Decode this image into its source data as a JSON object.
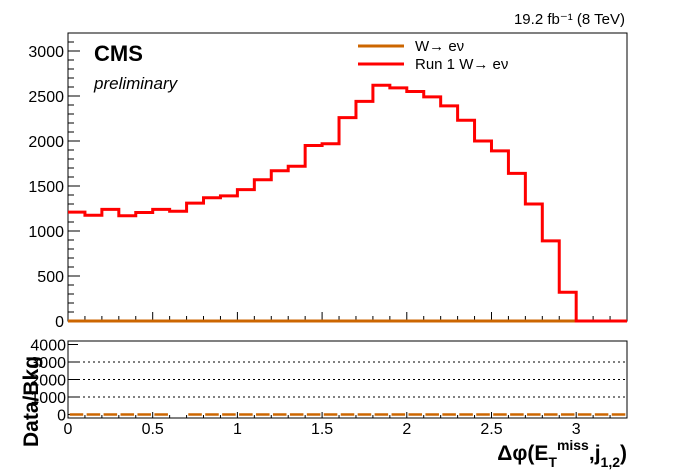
{
  "chart_data": {
    "type": "histogram",
    "lumi_text": "19.2 fb⁻¹ (8 TeV)",
    "cms_label": "CMS",
    "preliminary_label": "preliminary",
    "xlabel": "Δφ(E_T^miss,j_1,2)",
    "xlabel_parts": {
      "prefix": "Δφ(E",
      "sub1": "T",
      "sup1": "miss",
      "mid": ",j",
      "sub2": "1,2",
      "suffix": ")"
    },
    "ylabel_ratio": "Data/Bkg",
    "xlim": [
      0,
      3.3
    ],
    "ylim": [
      0,
      3200
    ],
    "ratio_ylim": [
      -200,
      4200
    ],
    "x_ticks": [
      0,
      0.5,
      1,
      1.5,
      2,
      2.5,
      3
    ],
    "x_tick_labels": [
      "0",
      "0.5",
      "1",
      "1.5",
      "2",
      "2.5",
      "3"
    ],
    "y_ticks": [
      0,
      500,
      1000,
      1500,
      2000,
      2500,
      3000
    ],
    "y_tick_labels": [
      "0",
      "500",
      "1000",
      "1500",
      "2000",
      "2500",
      "3000"
    ],
    "ratio_y_ticks": [
      0,
      1000,
      2000,
      3000,
      4000
    ],
    "ratio_y_tick_labels": [
      "0",
      "1000",
      "2000",
      "3000",
      "4000"
    ],
    "bin_width": 0.1,
    "series": [
      {
        "name": "W→ eν",
        "color": "#cc6600",
        "values": [
          0,
          0,
          0,
          0,
          0,
          0,
          0,
          0,
          0,
          0,
          0,
          0,
          0,
          0,
          0,
          0,
          0,
          0,
          0,
          0,
          0,
          0,
          0,
          0,
          0,
          0,
          0,
          0,
          0,
          0,
          0,
          0,
          0
        ]
      },
      {
        "name": "Run 1 W→ eν",
        "color": "#ff0000",
        "values": [
          1210,
          1175,
          1240,
          1170,
          1205,
          1240,
          1220,
          1310,
          1370,
          1390,
          1460,
          1570,
          1670,
          1720,
          1950,
          1970,
          2260,
          2440,
          2620,
          2590,
          2550,
          2490,
          2390,
          2230,
          2000,
          1890,
          1640,
          1300,
          890,
          320,
          0,
          0,
          0
        ]
      }
    ],
    "ratio_points": {
      "color": "#cc6600",
      "value": 0,
      "x": [
        0.05,
        0.15,
        0.25,
        0.35,
        0.45,
        0.55,
        0.75,
        0.85,
        0.95,
        1.05,
        1.15,
        1.25,
        1.35,
        1.45,
        1.55,
        1.65,
        1.75,
        1.85,
        1.95,
        2.05,
        2.15,
        2.25,
        2.35,
        2.45,
        2.55,
        2.65,
        2.75,
        2.85,
        2.95,
        3.05,
        3.15,
        3.25
      ]
    },
    "ratio_dotted_lines": [
      1000,
      2000,
      3000
    ]
  }
}
